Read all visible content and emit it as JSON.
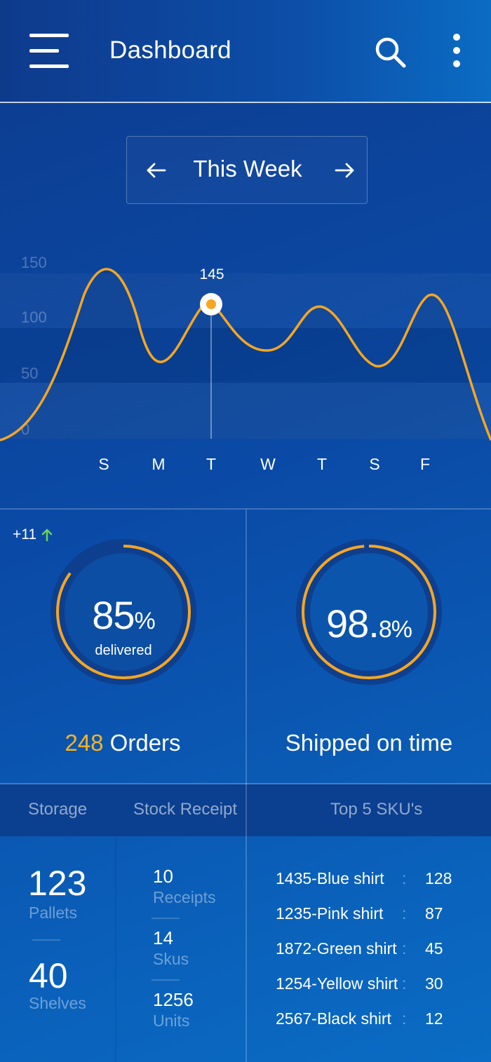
{
  "header": {
    "title": "Dashboard",
    "icons": {
      "menu": "hamburger-menu-icon",
      "search": "search-icon",
      "more": "more-vertical-icon"
    }
  },
  "week_selector": {
    "label": "This Week",
    "prev_icon": "arrow-left-icon",
    "next_icon": "arrow-right-icon"
  },
  "chart_data": {
    "type": "line",
    "categories": [
      "S",
      "M",
      "T",
      "W",
      "T",
      "S",
      "F"
    ],
    "y_ticks": [
      "150",
      "100",
      "50",
      "0"
    ],
    "ylim": [
      0,
      150
    ],
    "highlight": {
      "category_index": 2,
      "label": "145"
    },
    "colors": {
      "line": "#f5a623",
      "marker": "#f5a623"
    },
    "grid": "banded"
  },
  "stats": {
    "delivered": {
      "trend": "+11",
      "trend_icon": "arrow-up-icon",
      "value": "85",
      "unit": "%",
      "caption": "delivered",
      "progress": 0.85,
      "count": "248",
      "count_label": " Orders"
    },
    "shipped": {
      "value_main": "98.",
      "value_decimal": "8%",
      "progress": 0.988,
      "footer": "Shipped on time"
    }
  },
  "tabs": {
    "storage": "Storage",
    "stock_receipt": "Stock Receipt",
    "top_skus": "Top 5 SKU's"
  },
  "storage": {
    "pallets_value": "123",
    "pallets_label": "Pallets",
    "shelves_value": "40",
    "shelves_label": "Shelves"
  },
  "stock_receipt": {
    "items": [
      {
        "value": "10",
        "label": "Receipts"
      },
      {
        "value": "14",
        "label": "Skus"
      },
      {
        "value": "1256",
        "label": "Units"
      }
    ]
  },
  "top_skus": [
    {
      "name": "1435-Blue shirt",
      "count": "128"
    },
    {
      "name": "1235-Pink shirt",
      "count": "87"
    },
    {
      "name": "1872-Green shirt",
      "count": "45"
    },
    {
      "name": "1254-Yellow shirt",
      "count": "30"
    },
    {
      "name": "2567-Black shirt",
      "count": "12"
    }
  ],
  "colors": {
    "accent": "#f5a623",
    "trend_up": "#6cd35a",
    "ring_track": "#0d3f8e"
  }
}
